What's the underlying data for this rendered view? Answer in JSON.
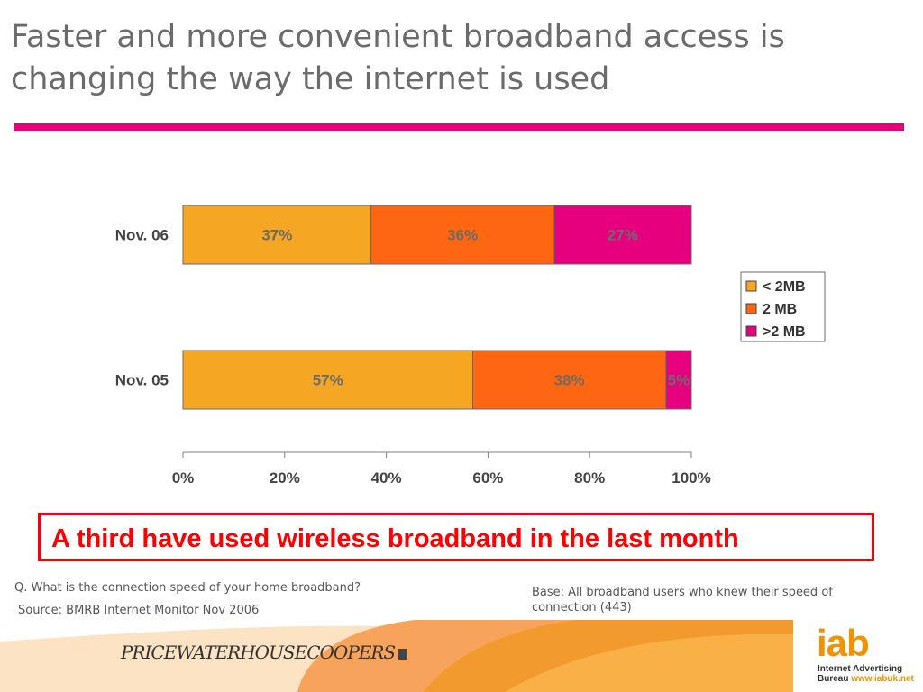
{
  "slide": {
    "title": "Faster and more convenient broadband access is changing the way the internet is used",
    "callout": "A third have used wireless broadband in the last month",
    "question": "Q. What is the connection speed of your home broadband?",
    "source": "Source: BMRB Internet Monitor Nov  2006",
    "base": "Base: All broadband users who knew their speed of connection (443)",
    "pwc_logo": "PRICEWATERHOUSECOOPERS",
    "iab_logo": "iab",
    "iab_name_1": "Internet Advertising",
    "iab_name_2": "Bureau",
    "iab_url": "www.iabuk.net",
    "accent_color": "#e6007e"
  },
  "chart_data": {
    "type": "bar",
    "orientation": "horizontal",
    "stacked": true,
    "categories": [
      "Nov. 06",
      "Nov. 05"
    ],
    "series": [
      {
        "name": "< 2MB",
        "values": [
          37,
          57
        ],
        "labels": [
          "37%",
          "57%"
        ],
        "color": "#f5a623"
      },
      {
        "name": "2 MB",
        "values": [
          36,
          38
        ],
        "labels": [
          "36%",
          "38%"
        ],
        "color": "#ff6611"
      },
      {
        "name": ">2 MB",
        "values": [
          27,
          5
        ],
        "labels": [
          "27%",
          "5%"
        ],
        "color": "#e6007e"
      }
    ],
    "xlim": [
      0,
      100
    ],
    "xticks": [
      "0%",
      "20%",
      "40%",
      "60%",
      "80%",
      "100%"
    ],
    "grid": false,
    "legend": "right"
  }
}
